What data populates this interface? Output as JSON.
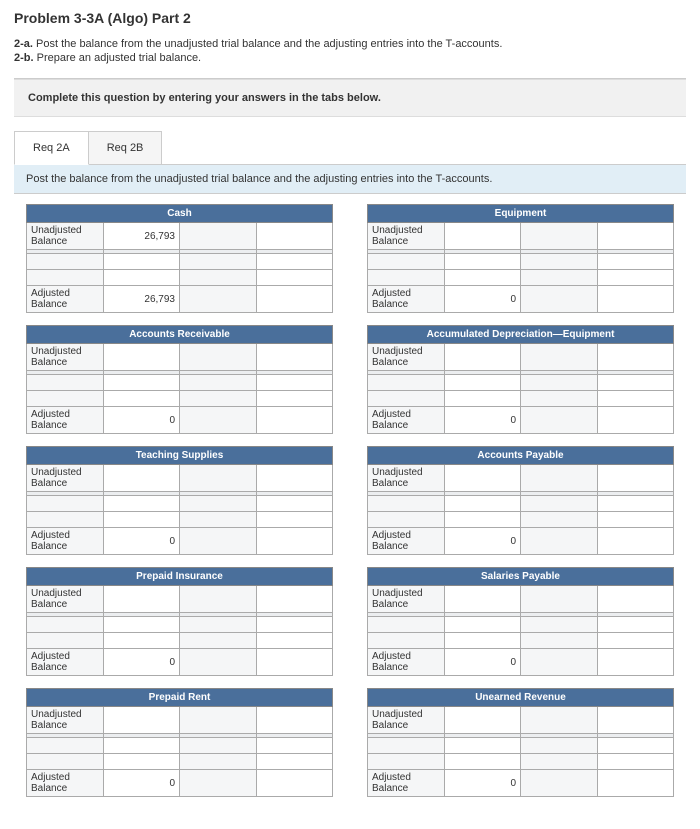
{
  "problem": {
    "title": "Problem 3-3A (Algo) Part 2",
    "line_a_prefix": "2-a.",
    "line_a_text": " Post the balance from the unadjusted trial balance and the adjusting entries into the T-accounts.",
    "line_b_prefix": "2-b.",
    "line_b_text": " Prepare an adjusted trial balance.",
    "complete_text": "Complete this question by entering your answers in the tabs below.",
    "tab_a": "Req 2A",
    "tab_b": "Req 2B",
    "strip_text": "Post the balance from the unadjusted trial balance and the adjusting entries into the T-accounts."
  },
  "labels": {
    "unadj": "Unadjusted Balance",
    "adj": "Adjusted Balance"
  },
  "accounts": {
    "cash": {
      "title": "Cash",
      "unadj": "26,793",
      "adj": "26,793"
    },
    "equipment": {
      "title": "Equipment",
      "unadj": "",
      "adj": "0"
    },
    "ar": {
      "title": "Accounts Receivable",
      "unadj": "",
      "adj": "0"
    },
    "accdep": {
      "title": "Accumulated Depreciation—Equipment",
      "unadj": "",
      "adj": "0"
    },
    "teaching": {
      "title": "Teaching Supplies",
      "unadj": "",
      "adj": "0"
    },
    "ap": {
      "title": "Accounts Payable",
      "unadj": "",
      "adj": "0"
    },
    "prepins": {
      "title": "Prepaid Insurance",
      "unadj": "",
      "adj": "0"
    },
    "salpay": {
      "title": "Salaries Payable",
      "unadj": "",
      "adj": "0"
    },
    "preprent": {
      "title": "Prepaid Rent",
      "unadj": "",
      "adj": "0"
    },
    "unearned": {
      "title": "Unearned Revenue",
      "unadj": "",
      "adj": "0"
    }
  },
  "colors": {
    "header_bg": "#4a6f9b",
    "strip_bg": "#e1eef6"
  }
}
